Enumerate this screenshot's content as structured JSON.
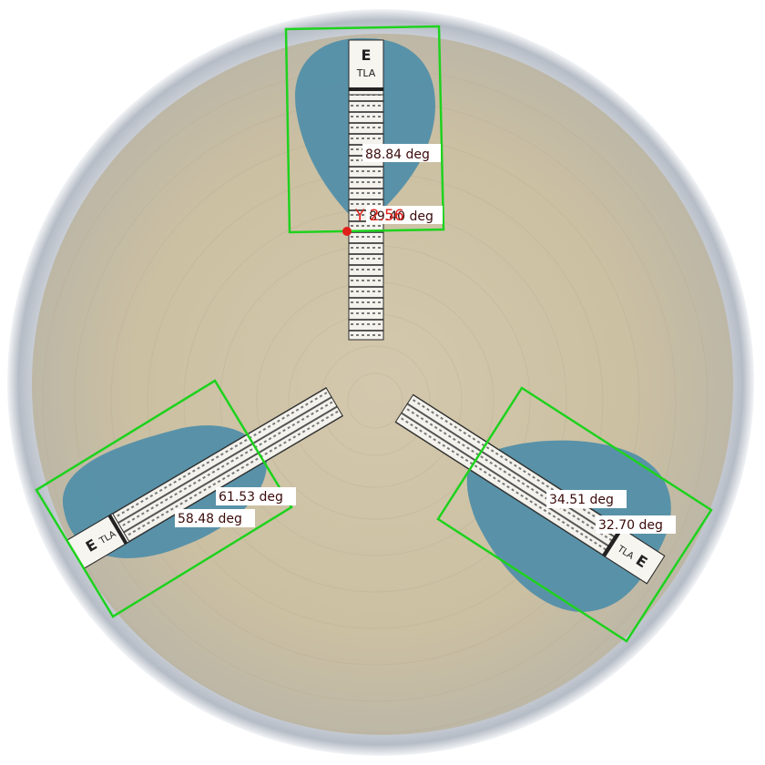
{
  "image": {
    "subject": "Petri dish with three E-test strips and blue inhibition zones",
    "colors": {
      "agar": "#cfc3a5",
      "agar_dark": "#b9ad8f",
      "zone": "#4f8ea8",
      "box": "#1ed21e",
      "strip": "#f4f2ec",
      "marker": "#e0201a",
      "label_text": "#3a0a0a"
    }
  },
  "strips": [
    {
      "id": "top",
      "logo": "E",
      "code": "TLA"
    },
    {
      "id": "left",
      "logo": "E",
      "code": "TLA"
    },
    {
      "id": "right",
      "logo": "E",
      "code": "TLA"
    }
  ],
  "measurements": {
    "top_angle": "88.84 deg",
    "top_overlap": "89.40 deg",
    "y_marker": "Y 2.56",
    "left_outer": "61.53 deg",
    "left_inner": "58.48 deg",
    "right_outer": "34.51 deg",
    "right_inner": "32.70 deg"
  }
}
